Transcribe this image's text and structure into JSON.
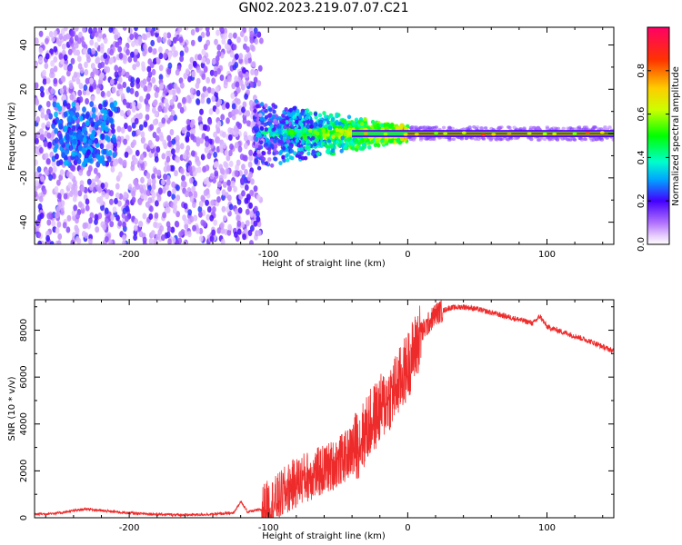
{
  "title": "GN02.2023.219.07.07.C21",
  "chart_data": [
    {
      "type": "heatmap",
      "name": "spectrogram",
      "xlabel": "Height of straight line (km)",
      "ylabel": "Frequency (Hz)",
      "xlim": [
        -268,
        148
      ],
      "ylim": [
        -50,
        48
      ],
      "xticks": [
        -200,
        -100,
        0,
        100
      ],
      "yticks": [
        -40,
        -20,
        0,
        20,
        40
      ],
      "colorbar": {
        "label": "Normalized spectral amplitude",
        "range": [
          0.0,
          1.0
        ],
        "ticks": [
          0.0,
          0.2,
          0.4,
          0.6,
          0.8
        ]
      },
      "regions": [
        {
          "x_range": [
            -268,
            -105
          ],
          "freq_range": [
            -50,
            48
          ],
          "amplitude": "0.05-0.2",
          "pattern": "scattered noise"
        },
        {
          "x_range": [
            -245,
            -220
          ],
          "freq_range": [
            -15,
            10
          ],
          "amplitude": "0.2-0.3",
          "pattern": "dense cluster"
        },
        {
          "x_range": [
            -105,
            -40
          ],
          "freq_range": [
            -12,
            12
          ],
          "amplitude": "0.2-0.5",
          "pattern": "converging band"
        },
        {
          "x_range": [
            -40,
            0
          ],
          "freq_range": [
            -4,
            4
          ],
          "amplitude": "0.4-0.9",
          "pattern": "narrowing band"
        },
        {
          "x_range": [
            0,
            148
          ],
          "freq_range": [
            -2,
            2
          ],
          "amplitude": "0.9-1.0",
          "pattern": "steady carrier line"
        }
      ]
    },
    {
      "type": "line",
      "name": "snr",
      "xlabel": "Height of straight line (km)",
      "ylabel": "SNR (10 * v/v)",
      "xlim": [
        -268,
        148
      ],
      "ylim": [
        0,
        9300
      ],
      "xticks": [
        -200,
        -100,
        0,
        100
      ],
      "yticks": [
        0,
        2000,
        4000,
        6000,
        8000
      ],
      "series": [
        {
          "name": "SNR",
          "color": "#ee2b2b",
          "x": [
            -268,
            -250,
            -240,
            -230,
            -220,
            -200,
            -180,
            -160,
            -140,
            -125,
            -120,
            -115,
            -105,
            -95,
            -85,
            -75,
            -65,
            -55,
            -45,
            -35,
            -25,
            -15,
            -10,
            -5,
            0,
            5,
            10,
            15,
            20,
            30,
            40,
            50,
            60,
            70,
            80,
            90,
            95,
            100,
            110,
            120,
            130,
            140,
            148
          ],
          "values": [
            150,
            200,
            300,
            380,
            300,
            200,
            150,
            120,
            150,
            200,
            700,
            250,
            350,
            700,
            1300,
            1700,
            1900,
            2200,
            2600,
            3200,
            4200,
            5000,
            5400,
            5900,
            6500,
            7200,
            7900,
            8300,
            8700,
            8950,
            9000,
            8900,
            8750,
            8600,
            8450,
            8300,
            8600,
            8150,
            7950,
            7750,
            7550,
            7300,
            7100
          ]
        }
      ]
    }
  ]
}
